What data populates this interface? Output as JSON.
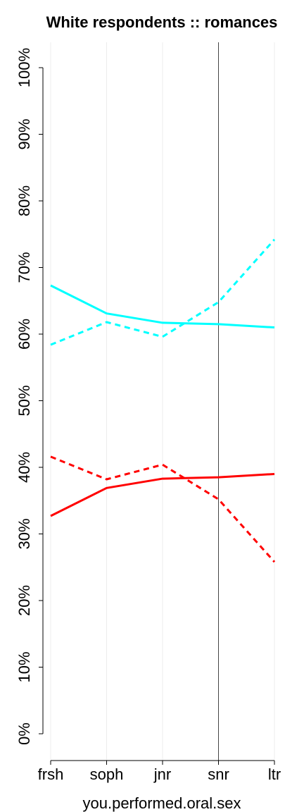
{
  "chart_data": {
    "type": "line",
    "title": "White respondents :: romances",
    "xlabel": "you.performed.oral.sex",
    "ylabel": "",
    "categories": [
      "frsh",
      "soph",
      "jnr",
      "snr",
      "ltr"
    ],
    "yticks": [
      "0%",
      "10%",
      "20%",
      "30%",
      "40%",
      "50%",
      "60%",
      "70%",
      "80%",
      "90%",
      "100%"
    ],
    "ylim": [
      0,
      100
    ],
    "grid": "vertical",
    "reference_line_at": "snr",
    "series": [
      {
        "color": "#00ffff",
        "dash": "solid",
        "values": [
          67.3,
          63.1,
          61.7,
          61.5,
          61.0
        ]
      },
      {
        "color": "#00ffff",
        "dash": "dashed",
        "values": [
          58.4,
          61.8,
          59.6,
          64.8,
          74.2
        ]
      },
      {
        "color": "#ff0000",
        "dash": "solid",
        "values": [
          32.7,
          36.9,
          38.3,
          38.5,
          39.0
        ]
      },
      {
        "color": "#ff0000",
        "dash": "dashed",
        "values": [
          41.6,
          38.2,
          40.4,
          35.2,
          25.8
        ]
      }
    ]
  }
}
